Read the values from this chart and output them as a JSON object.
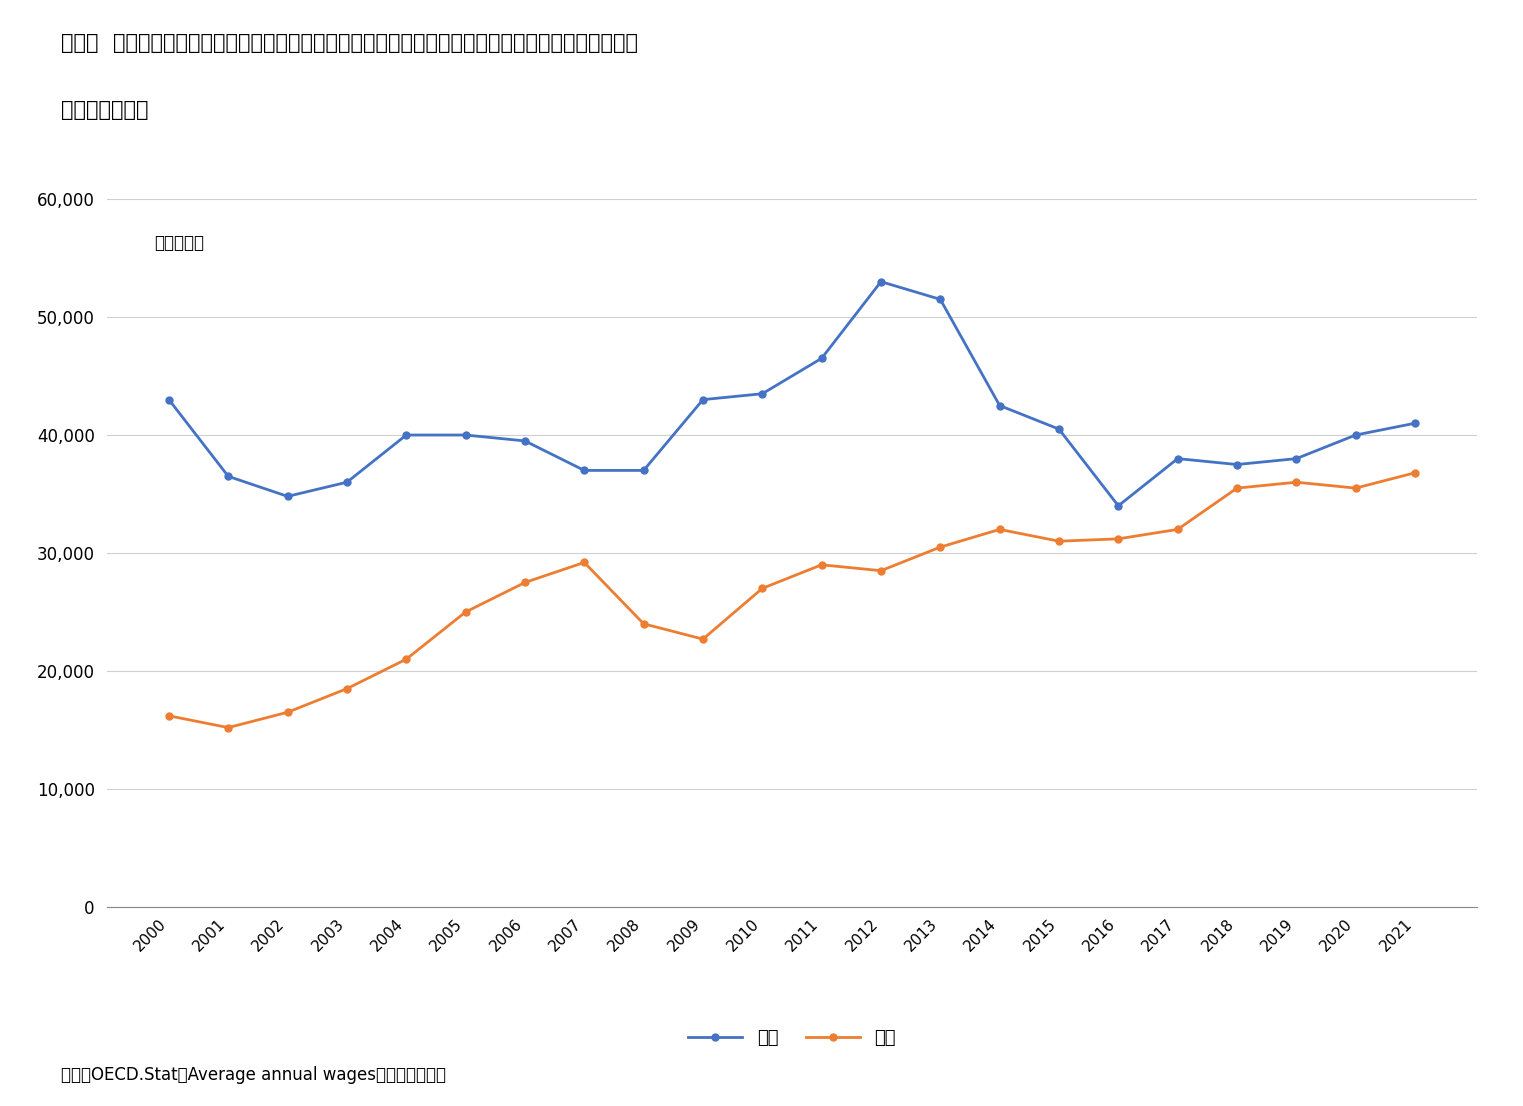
{
  "title_line1": "図表２  日韓における年間平均賃金の推移（名目、日韓の各年の名目平均賃金をその年の平均為替レー",
  "title_line2": "トでドル換算）",
  "years": [
    2000,
    2001,
    2002,
    2003,
    2004,
    2005,
    2006,
    2007,
    2008,
    2009,
    2010,
    2011,
    2012,
    2013,
    2014,
    2015,
    2016,
    2017,
    2018,
    2019,
    2020,
    2021
  ],
  "japan": [
    43000,
    36500,
    34800,
    36000,
    40000,
    40000,
    39500,
    37000,
    37000,
    43000,
    43500,
    46500,
    53000,
    51500,
    42500,
    40500,
    34000,
    38000,
    37500,
    38000,
    40000,
    41000
  ],
  "korea": [
    16200,
    15200,
    16500,
    18500,
    21000,
    25000,
    27500,
    29200,
    24000,
    22700,
    27000,
    29000,
    28500,
    30500,
    32000,
    31000,
    31200,
    32000,
    35500,
    36000,
    35500,
    36800
  ],
  "japan_color": "#4472C4",
  "korea_color": "#ED7D31",
  "ylim": [
    0,
    60000
  ],
  "yticks": [
    0,
    10000,
    20000,
    30000,
    40000,
    50000,
    60000
  ],
  "legend_japan": "日本",
  "legend_korea": "韓国",
  "unit_label": "単位：ドル",
  "source_label": "出所）OECD.Stat「Average annual wages」より筆者作成",
  "background_color": "#ffffff",
  "grid_color": "#d0d0d0"
}
